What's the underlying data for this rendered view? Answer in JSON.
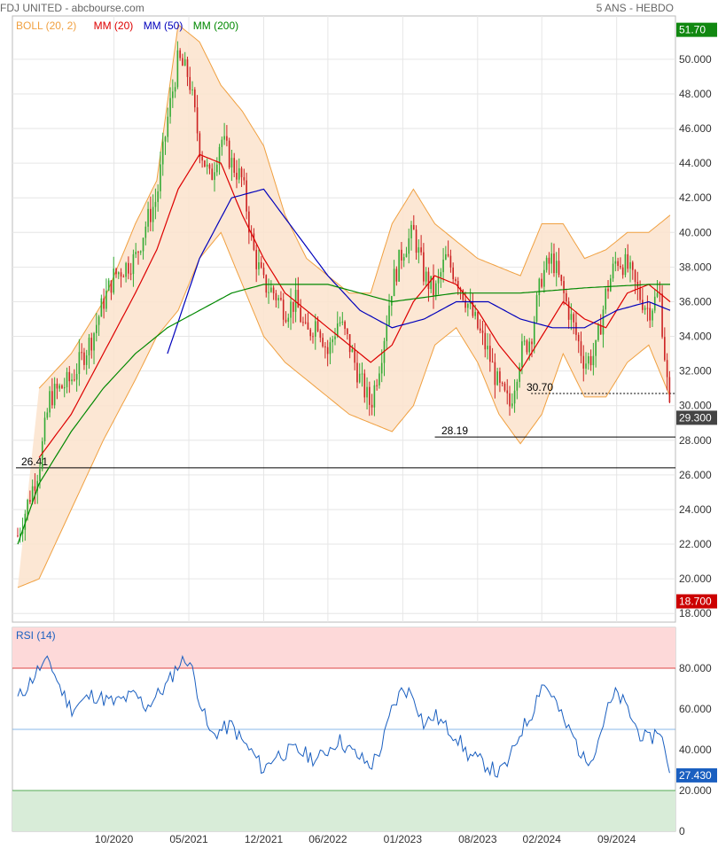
{
  "header": {
    "title": "FDJ UNITED - abcbourse.com",
    "period": "5 ANS - HEBDO"
  },
  "legend": [
    {
      "label": "BOLL (20, 2)",
      "color": "#f0a040"
    },
    {
      "label": "MM (20)",
      "color": "#dd0000"
    },
    {
      "label": "MM (50)",
      "color": "#0000bb"
    },
    {
      "label": "MM (200)",
      "color": "#008800"
    }
  ],
  "colors": {
    "up": "#33aa33",
    "down": "#cc2222",
    "boll_fill": "#fbe3cc",
    "boll_line": "#f0a040",
    "ma20": "#dd0000",
    "ma50": "#0000bb",
    "ma200": "#008800",
    "rsi_line": "#1a5fc0",
    "rsi_high_zone": "#fdd9d9",
    "rsi_low_zone": "#d8ecd8",
    "badge_high": "#118811",
    "badge_low": "#cc0000",
    "badge_last": "#444444"
  },
  "chart_data": [
    {
      "type": "candlestick",
      "y_ticks": [
        "18.000",
        "20.000",
        "22.000",
        "24.000",
        "26.000",
        "28.000",
        "30.000",
        "32.000",
        "34.000",
        "36.000",
        "38.000",
        "40.000",
        "42.000",
        "44.000",
        "46.000",
        "48.000",
        "50.000"
      ],
      "ylim": [
        17.5,
        52.5
      ],
      "x_labels": [
        "10/2020",
        "05/2021",
        "12/2021",
        "06/2022",
        "01/2023",
        "08/2023",
        "02/2024",
        "09/2024"
      ],
      "x_range": [
        "2020-01",
        "2025-02"
      ],
      "markers": {
        "high": "51.70",
        "low": "18.700",
        "last": "29.300"
      },
      "annotations": [
        {
          "label": "30.70",
          "value": 30.7
        },
        {
          "label": "28.19",
          "value": 28.19
        },
        {
          "label": "26.41",
          "value": 26.41
        }
      ],
      "price_path": [
        [
          "2020-01",
          22.5
        ],
        [
          "2020-03",
          26.5
        ],
        [
          "2020-04",
          30.5
        ],
        [
          "2020-06",
          31.5
        ],
        [
          "2020-08",
          34.0
        ],
        [
          "2020-09",
          36.0
        ],
        [
          "2020-10",
          37.5
        ],
        [
          "2020-11",
          38.0
        ],
        [
          "2020-12",
          38.5
        ],
        [
          "2021-01",
          40.5
        ],
        [
          "2021-02",
          42.0
        ],
        [
          "2021-03",
          46.5
        ],
        [
          "2021-04",
          50.0
        ],
        [
          "2021-05",
          49.0
        ],
        [
          "2021-06",
          45.0
        ],
        [
          "2021-07",
          43.0
        ],
        [
          "2021-08",
          45.5
        ],
        [
          "2021-09",
          44.0
        ],
        [
          "2021-10",
          43.0
        ],
        [
          "2021-11",
          39.0
        ],
        [
          "2021-12",
          37.0
        ],
        [
          "2022-01",
          36.5
        ],
        [
          "2022-02",
          35.5
        ],
        [
          "2022-03",
          36.0
        ],
        [
          "2022-04",
          34.0
        ],
        [
          "2022-05",
          35.0
        ],
        [
          "2022-06",
          33.0
        ],
        [
          "2022-07",
          35.0
        ],
        [
          "2022-08",
          33.5
        ],
        [
          "2022-09",
          31.5
        ],
        [
          "2022-10",
          30.0
        ],
        [
          "2022-11",
          33.0
        ],
        [
          "2022-12",
          37.0
        ],
        [
          "2023-01",
          39.0
        ],
        [
          "2023-02",
          40.0
        ],
        [
          "2023-03",
          37.5
        ],
        [
          "2023-04",
          36.5
        ],
        [
          "2023-05",
          38.5
        ],
        [
          "2023-06",
          37.5
        ],
        [
          "2023-07",
          36.0
        ],
        [
          "2023-08",
          34.5
        ],
        [
          "2023-09",
          33.0
        ],
        [
          "2023-10",
          31.0
        ],
        [
          "2023-11",
          30.0
        ],
        [
          "2023-12",
          33.0
        ],
        [
          "2024-01",
          34.0
        ],
        [
          "2024-02",
          37.5
        ],
        [
          "2024-03",
          38.5
        ],
        [
          "2024-04",
          36.5
        ],
        [
          "2024-05",
          34.5
        ],
        [
          "2024-06",
          32.5
        ],
        [
          "2024-07",
          33.0
        ],
        [
          "2024-08",
          36.5
        ],
        [
          "2024-09",
          38.5
        ],
        [
          "2024-10",
          38.0
        ],
        [
          "2024-11",
          36.5
        ],
        [
          "2024-12",
          35.5
        ],
        [
          "2025-01",
          36.5
        ],
        [
          "2025-02",
          29.3
        ]
      ],
      "series": [
        {
          "name": "MM (20)",
          "values": [
            [
              "2020-03",
              27.0
            ],
            [
              "2020-06",
              29.5
            ],
            [
              "2020-09",
              33.0
            ],
            [
              "2020-12",
              36.5
            ],
            [
              "2021-02",
              39.0
            ],
            [
              "2021-04",
              42.5
            ],
            [
              "2021-06",
              44.5
            ],
            [
              "2021-08",
              44.0
            ],
            [
              "2021-10",
              41.0
            ],
            [
              "2021-12",
              38.5
            ],
            [
              "2022-02",
              36.5
            ],
            [
              "2022-04",
              35.5
            ],
            [
              "2022-06",
              34.5
            ],
            [
              "2022-08",
              33.5
            ],
            [
              "2022-10",
              32.5
            ],
            [
              "2022-12",
              33.5
            ],
            [
              "2023-02",
              36.0
            ],
            [
              "2023-04",
              37.5
            ],
            [
              "2023-06",
              37.0
            ],
            [
              "2023-08",
              35.5
            ],
            [
              "2023-10",
              33.5
            ],
            [
              "2023-12",
              32.0
            ],
            [
              "2024-02",
              34.0
            ],
            [
              "2024-04",
              36.0
            ],
            [
              "2024-06",
              35.0
            ],
            [
              "2024-08",
              34.5
            ],
            [
              "2024-10",
              36.5
            ],
            [
              "2024-12",
              37.0
            ],
            [
              "2025-02",
              36.0
            ]
          ]
        },
        {
          "name": "MM (50)",
          "values": [
            [
              "2021-03",
              33.0
            ],
            [
              "2021-06",
              38.5
            ],
            [
              "2021-09",
              42.0
            ],
            [
              "2021-12",
              42.5
            ],
            [
              "2022-03",
              40.0
            ],
            [
              "2022-06",
              37.5
            ],
            [
              "2022-09",
              35.5
            ],
            [
              "2022-12",
              34.5
            ],
            [
              "2023-03",
              35.0
            ],
            [
              "2023-06",
              36.0
            ],
            [
              "2023-09",
              36.0
            ],
            [
              "2023-12",
              35.0
            ],
            [
              "2024-03",
              34.5
            ],
            [
              "2024-06",
              34.5
            ],
            [
              "2024-09",
              35.5
            ],
            [
              "2024-12",
              36.0
            ],
            [
              "2025-02",
              35.5
            ]
          ]
        },
        {
          "name": "MM (200)",
          "values": [
            [
              "2020-01",
              22.0
            ],
            [
              "2020-03",
              25.5
            ],
            [
              "2020-06",
              28.5
            ],
            [
              "2020-09",
              31.0
            ],
            [
              "2020-12",
              33.0
            ],
            [
              "2021-03",
              34.5
            ],
            [
              "2021-06",
              35.5
            ],
            [
              "2021-09",
              36.5
            ],
            [
              "2021-12",
              37.0
            ],
            [
              "2022-06",
              37.0
            ],
            [
              "2022-12",
              36.0
            ],
            [
              "2023-06",
              36.5
            ],
            [
              "2023-12",
              36.5
            ],
            [
              "2024-06",
              36.8
            ],
            [
              "2024-12",
              37.0
            ],
            [
              "2025-02",
              37.0
            ]
          ]
        },
        {
          "name": "BOLL (20, 2)",
          "upper": [
            [
              "2020-03",
              31.0
            ],
            [
              "2020-06",
              33.0
            ],
            [
              "2020-09",
              36.0
            ],
            [
              "2020-12",
              40.5
            ],
            [
              "2021-02",
              43.0
            ],
            [
              "2021-04",
              52.0
            ],
            [
              "2021-06",
              51.0
            ],
            [
              "2021-08",
              48.5
            ],
            [
              "2021-10",
              47.0
            ],
            [
              "2021-12",
              45.0
            ],
            [
              "2022-02",
              41.0
            ],
            [
              "2022-04",
              38.5
            ],
            [
              "2022-06",
              37.5
            ],
            [
              "2022-08",
              36.5
            ],
            [
              "2022-10",
              36.5
            ],
            [
              "2022-12",
              40.5
            ],
            [
              "2023-02",
              42.5
            ],
            [
              "2023-04",
              40.5
            ],
            [
              "2023-06",
              39.5
            ],
            [
              "2023-08",
              38.5
            ],
            [
              "2023-10",
              38.0
            ],
            [
              "2023-12",
              37.5
            ],
            [
              "2024-02",
              40.5
            ],
            [
              "2024-04",
              40.5
            ],
            [
              "2024-06",
              38.5
            ],
            [
              "2024-08",
              39.0
            ],
            [
              "2024-10",
              40.0
            ],
            [
              "2024-12",
              40.0
            ],
            [
              "2025-02",
              41.0
            ]
          ],
          "lower": [
            [
              "2020-01",
              19.5
            ],
            [
              "2020-03",
              20.0
            ],
            [
              "2020-06",
              24.0
            ],
            [
              "2020-09",
              28.0
            ],
            [
              "2020-12",
              31.5
            ],
            [
              "2021-02",
              34.0
            ],
            [
              "2021-04",
              35.5
            ],
            [
              "2021-06",
              38.5
            ],
            [
              "2021-08",
              40.0
            ],
            [
              "2021-10",
              37.0
            ],
            [
              "2021-12",
              34.0
            ],
            [
              "2022-02",
              32.5
            ],
            [
              "2022-04",
              31.5
            ],
            [
              "2022-06",
              30.5
            ],
            [
              "2022-08",
              29.5
            ],
            [
              "2022-10",
              29.0
            ],
            [
              "2022-12",
              28.5
            ],
            [
              "2023-02",
              30.0
            ],
            [
              "2023-04",
              33.5
            ],
            [
              "2023-06",
              34.5
            ],
            [
              "2023-08",
              32.5
            ],
            [
              "2023-10",
              29.5
            ],
            [
              "2023-12",
              27.8
            ],
            [
              "2024-02",
              29.5
            ],
            [
              "2024-04",
              33.0
            ],
            [
              "2024-06",
              30.5
            ],
            [
              "2024-08",
              30.5
            ],
            [
              "2024-10",
              32.5
            ],
            [
              "2024-12",
              33.5
            ],
            [
              "2025-02",
              30.5
            ]
          ]
        }
      ]
    },
    {
      "type": "line",
      "title": "RSI (14)",
      "y_ticks": [
        "0",
        "20.000",
        "40.000",
        "60.000",
        "80.000"
      ],
      "ylim": [
        0,
        100
      ],
      "zones": {
        "overbought": 80,
        "oversold": 20
      },
      "last_value": "27.430",
      "series": [
        {
          "name": "RSI (14)",
          "values": [
            [
              "2020-01",
              65
            ],
            [
              "2020-02",
              72
            ],
            [
              "2020-03",
              80
            ],
            [
              "2020-04",
              83
            ],
            [
              "2020-05",
              70
            ],
            [
              "2020-06",
              60
            ],
            [
              "2020-08",
              67
            ],
            [
              "2020-10",
              63
            ],
            [
              "2020-12",
              67
            ],
            [
              "2021-01",
              61
            ],
            [
              "2021-03",
              72
            ],
            [
              "2021-04",
              82
            ],
            [
              "2021-05",
              85
            ],
            [
              "2021-06",
              65
            ],
            [
              "2021-07",
              47
            ],
            [
              "2021-09",
              52
            ],
            [
              "2021-10",
              44
            ],
            [
              "2021-11",
              38
            ],
            [
              "2021-12",
              30
            ],
            [
              "2022-01",
              37
            ],
            [
              "2022-03",
              40
            ],
            [
              "2022-05",
              35
            ],
            [
              "2022-07",
              45
            ],
            [
              "2022-08",
              40
            ],
            [
              "2022-09",
              36
            ],
            [
              "2022-10",
              32
            ],
            [
              "2022-11",
              41
            ],
            [
              "2022-12",
              60
            ],
            [
              "2023-01",
              70
            ],
            [
              "2023-02",
              67
            ],
            [
              "2023-03",
              52
            ],
            [
              "2023-04",
              57
            ],
            [
              "2023-05",
              51
            ],
            [
              "2023-06",
              47
            ],
            [
              "2023-07",
              38
            ],
            [
              "2023-08",
              35
            ],
            [
              "2023-09",
              32
            ],
            [
              "2023-10",
              28
            ],
            [
              "2023-11",
              35
            ],
            [
              "2023-12",
              49
            ],
            [
              "2024-01",
              57
            ],
            [
              "2024-02",
              73
            ],
            [
              "2024-03",
              67
            ],
            [
              "2024-04",
              54
            ],
            [
              "2024-05",
              46
            ],
            [
              "2024-06",
              34
            ],
            [
              "2024-07",
              40
            ],
            [
              "2024-08",
              58
            ],
            [
              "2024-09",
              68
            ],
            [
              "2024-10",
              60
            ],
            [
              "2024-11",
              49
            ],
            [
              "2024-12",
              44
            ],
            [
              "2025-01",
              51
            ],
            [
              "2025-02",
              27.43
            ]
          ]
        }
      ]
    }
  ]
}
